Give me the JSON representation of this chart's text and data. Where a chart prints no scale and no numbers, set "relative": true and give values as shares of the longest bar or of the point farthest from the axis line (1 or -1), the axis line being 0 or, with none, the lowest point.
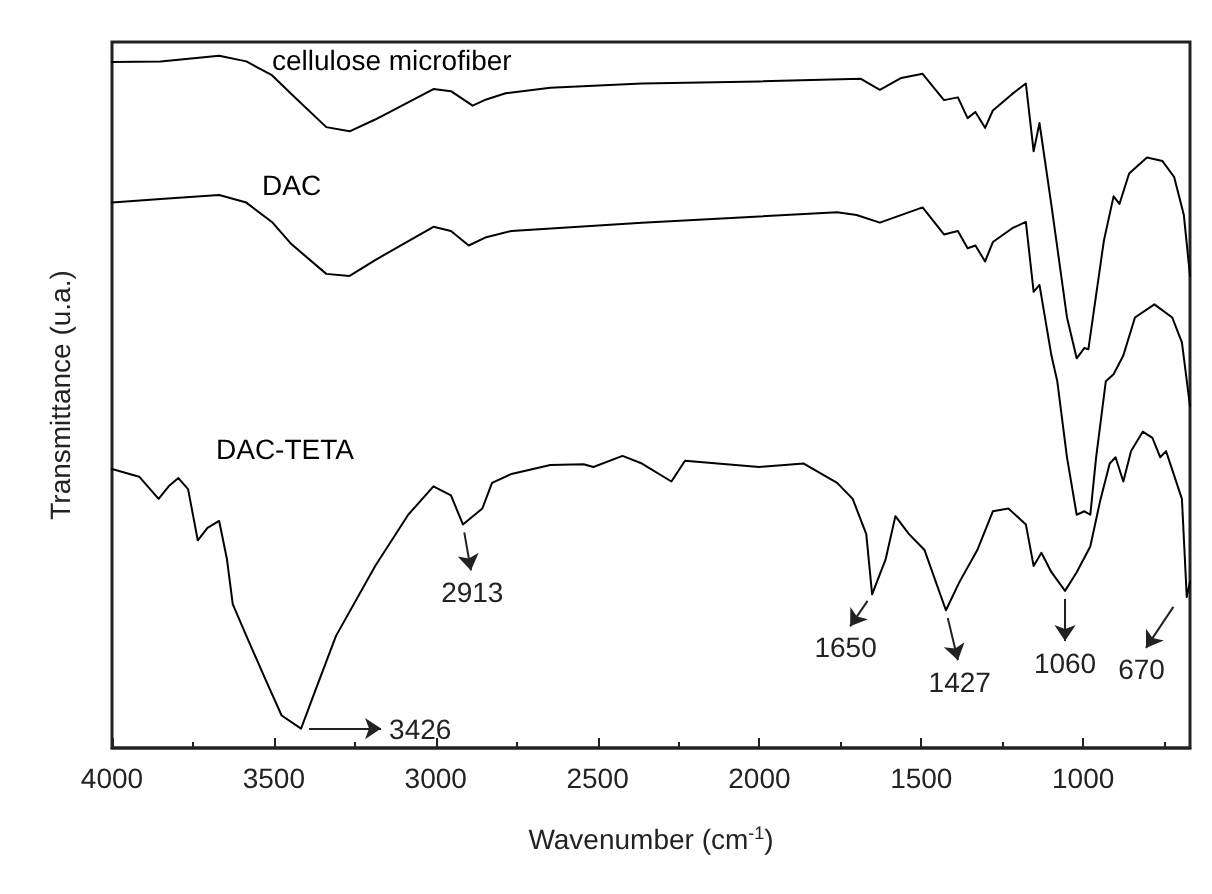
{
  "chart_data": {
    "type": "line",
    "xlabel": "Wavenumber (cm$^{-1}$)",
    "ylabel": "Transmittance (u.a.)",
    "relative": true,
    "xlim": [
      4000,
      670
    ],
    "xticks": [
      4000,
      3500,
      3000,
      2500,
      2000,
      1500,
      1000
    ],
    "legend": false,
    "grid": false,
    "marker": "none",
    "line_style": "solid",
    "series": [
      {
        "name": "cellulose microfiber",
        "color": "#000000",
        "x": [
          4000,
          3850,
          3669,
          3585,
          3506,
          3446,
          3338,
          3266,
          3187,
          3007,
          2953,
          2886,
          2844,
          2784,
          2646,
          2363,
          2001,
          1688,
          1628,
          1562,
          1496,
          1430,
          1387,
          1357,
          1333,
          1303,
          1279,
          1219,
          1177,
          1153,
          1135,
          1098,
          1050,
          1020,
          996,
          984,
          936,
          906,
          888,
          858,
          803,
          755,
          719,
          689,
          670
        ],
        "values": [
          0.991,
          0.992,
          1.0,
          0.992,
          0.972,
          0.945,
          0.897,
          0.891,
          0.908,
          0.952,
          0.949,
          0.928,
          0.937,
          0.946,
          0.954,
          0.96,
          0.963,
          0.967,
          0.951,
          0.968,
          0.974,
          0.936,
          0.94,
          0.91,
          0.919,
          0.896,
          0.921,
          0.945,
          0.96,
          0.862,
          0.903,
          0.784,
          0.622,
          0.563,
          0.578,
          0.576,
          0.733,
          0.797,
          0.786,
          0.83,
          0.853,
          0.848,
          0.825,
          0.77,
          0.682
        ]
      },
      {
        "name": "DAC",
        "color": "#000000",
        "x": [
          4000,
          3850,
          3669,
          3585,
          3506,
          3446,
          3338,
          3266,
          3187,
          3007,
          2953,
          2898,
          2844,
          2766,
          2363,
          1760,
          1700,
          1628,
          1496,
          1430,
          1387,
          1357,
          1333,
          1303,
          1279,
          1219,
          1177,
          1153,
          1135,
          1098,
          1080,
          1050,
          1020,
          996,
          978,
          960,
          930,
          906,
          876,
          840,
          780,
          725,
          695,
          670
        ],
        "values": [
          0.788,
          0.793,
          0.799,
          0.788,
          0.76,
          0.728,
          0.685,
          0.682,
          0.705,
          0.753,
          0.747,
          0.726,
          0.738,
          0.747,
          0.759,
          0.774,
          0.77,
          0.759,
          0.781,
          0.742,
          0.747,
          0.722,
          0.726,
          0.703,
          0.731,
          0.751,
          0.76,
          0.659,
          0.669,
          0.567,
          0.53,
          0.42,
          0.337,
          0.342,
          0.337,
          0.42,
          0.53,
          0.54,
          0.567,
          0.622,
          0.641,
          0.622,
          0.586,
          0.494
        ]
      },
      {
        "name": "DAC-TETA",
        "color": "#000000",
        "x": [
          4000,
          3916,
          3856,
          3825,
          3795,
          3765,
          3735,
          3705,
          3669,
          3645,
          3627,
          3585,
          3525,
          3476,
          3416,
          3368,
          3308,
          3187,
          3085,
          3007,
          2953,
          2916,
          2856,
          2826,
          2766,
          2646,
          2543,
          2513,
          2423,
          2363,
          2272,
          2230,
          2001,
          1863,
          1760,
          1712,
          1670,
          1652,
          1610,
          1580,
          1538,
          1490,
          1424,
          1382,
          1327,
          1279,
          1231,
          1177,
          1153,
          1129,
          1098,
          1056,
          1020,
          978,
          948,
          918,
          900,
          876,
          852,
          816,
          786,
          762,
          744,
          695,
          680,
          670
        ],
        "values": [
          0.403,
          0.392,
          0.36,
          0.378,
          0.39,
          0.374,
          0.3,
          0.318,
          0.328,
          0.273,
          0.208,
          0.162,
          0.098,
          0.047,
          0.028,
          0.088,
          0.162,
          0.263,
          0.337,
          0.378,
          0.365,
          0.323,
          0.346,
          0.383,
          0.396,
          0.409,
          0.41,
          0.406,
          0.422,
          0.411,
          0.385,
          0.415,
          0.406,
          0.411,
          0.383,
          0.36,
          0.309,
          0.222,
          0.273,
          0.335,
          0.309,
          0.286,
          0.199,
          0.24,
          0.286,
          0.342,
          0.346,
          0.323,
          0.263,
          0.282,
          0.254,
          0.227,
          0.254,
          0.291,
          0.356,
          0.411,
          0.42,
          0.385,
          0.429,
          0.457,
          0.448,
          0.42,
          0.429,
          0.36,
          0.218,
          0.24
        ]
      }
    ],
    "annotations": [
      {
        "text": "3426",
        "x": 3416,
        "y": 0.028
      },
      {
        "text": "2913",
        "x": 2916,
        "y": 0.323
      },
      {
        "text": "1650",
        "x": 1652,
        "y": 0.222
      },
      {
        "text": "1427",
        "x": 1424,
        "y": 0.199
      },
      {
        "text": "1060",
        "x": 1056,
        "y": 0.227
      },
      {
        "text": "670",
        "x": 670,
        "y": 0.24
      }
    ]
  }
}
